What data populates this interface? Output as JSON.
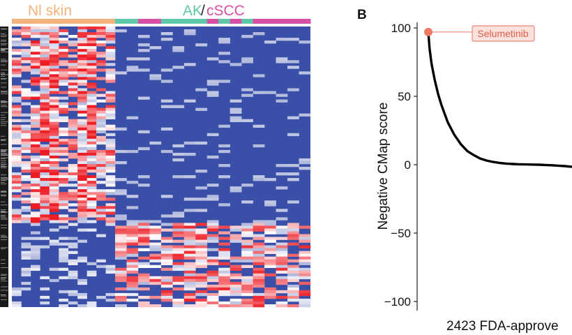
{
  "heatmap": {
    "group_title_nl": "Nl skin",
    "group_title_ak": "AK",
    "group_title_slash": "/",
    "group_title_cscc": "cSCC",
    "colors": {
      "nl": "#f5b27a",
      "ak": "#5fc8a8",
      "cscc": "#d84fa6",
      "low": "#3a4fa8",
      "mid": "#ffffff",
      "high": "#ee1c24",
      "sidebar": "#1a1a1a"
    },
    "n_nl_columns": 11,
    "n_tumor_columns": 17,
    "column_groups": [
      "AK",
      "AK",
      "cSCC",
      "cSCC",
      "AK",
      "AK",
      "AK",
      "AK",
      "cSCC",
      "AK",
      "cSCC",
      "AK",
      "cSCC",
      "cSCC",
      "cSCC",
      "cSCC",
      "cSCC"
    ]
  },
  "panel_b": {
    "label": "B",
    "annotation": "Selumetinib"
  },
  "chart_data": {
    "type": "line",
    "title": "",
    "xlabel": "2423 FDA-approve",
    "ylabel": "Negative CMap score",
    "ylim": [
      -100,
      100
    ],
    "yticks": [
      100,
      50,
      0,
      -50,
      -100
    ],
    "ytick_labels": [
      "100",
      "50",
      "0",
      "−50",
      "−100"
    ],
    "xlim": [
      1,
      2423
    ],
    "series": [
      {
        "x": [
          1,
          20,
          50,
          100,
          150,
          200,
          300,
          400,
          500,
          600,
          700,
          800,
          900,
          1000,
          1100,
          1200,
          1300,
          1400,
          1500,
          1600,
          1700,
          1800,
          1900,
          2000,
          2100,
          2200
        ],
        "y": [
          97,
          85,
          74,
          62,
          52,
          44,
          31,
          22,
          15,
          10,
          7,
          4.5,
          3,
          2,
          1.3,
          0.8,
          0.5,
          0.3,
          0.2,
          0.1,
          0,
          -0.2,
          -0.4,
          -0.7,
          -1,
          -1.5
        ],
        "color": "#000000"
      }
    ],
    "highlight": {
      "x": 1,
      "y": 97,
      "label": "Selumetinib",
      "color": "#f07a6a"
    }
  }
}
